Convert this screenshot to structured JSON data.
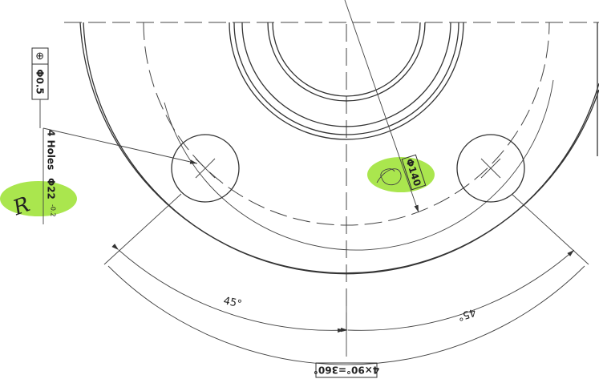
{
  "feature_control": {
    "symbol": "⊕",
    "tolerance": "Φ0.5"
  },
  "hole_callout": {
    "count": "4 Holes",
    "diameter": "Φ22",
    "tolerance": "-0.2"
  },
  "handwritten_mark": "R",
  "bore_diameter": "Φ140",
  "angle_dimensions": [
    "45°",
    "45°"
  ],
  "total_angle": "4×90°=360°"
}
